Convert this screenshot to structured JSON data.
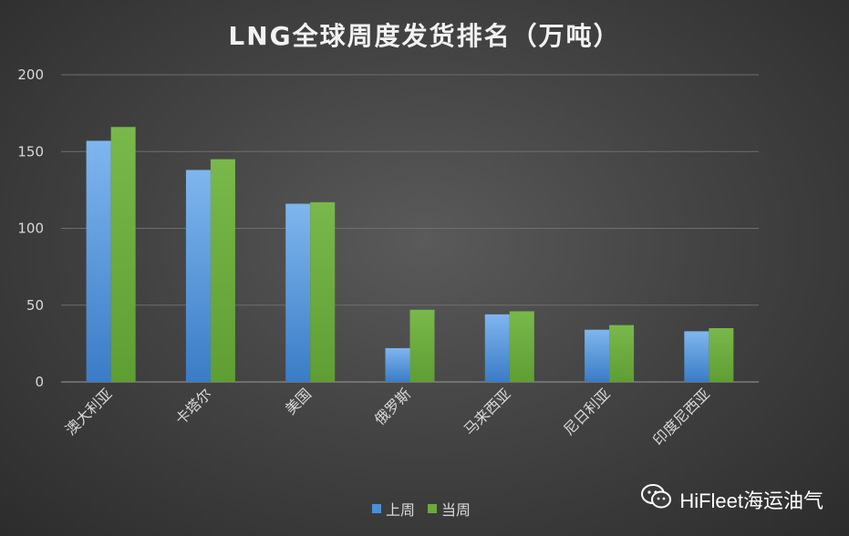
{
  "chart_data": {
    "type": "bar",
    "title": "LNG全球周度发货排名（万吨）",
    "categories": [
      "澳大利亚",
      "卡塔尔",
      "美国",
      "俄罗斯",
      "马来西亚",
      "尼日利亚",
      "印度尼西亚"
    ],
    "series": [
      {
        "name": "上周",
        "values": [
          157,
          138,
          116,
          22,
          44,
          34,
          33
        ],
        "color": "#4a90d9"
      },
      {
        "name": "当周",
        "values": [
          166,
          145,
          117,
          47,
          46,
          37,
          35
        ],
        "color": "#6aaa3a"
      }
    ],
    "ylim": [
      0,
      200
    ],
    "yticks": [
      "0",
      "50",
      "100",
      "150",
      "200"
    ],
    "ytick_values": [
      0,
      50,
      100,
      150,
      200
    ],
    "grid": true,
    "legend_position": "bottom"
  },
  "watermark": {
    "text": "HiFleet海运油气",
    "icon": "wechat-icon"
  }
}
